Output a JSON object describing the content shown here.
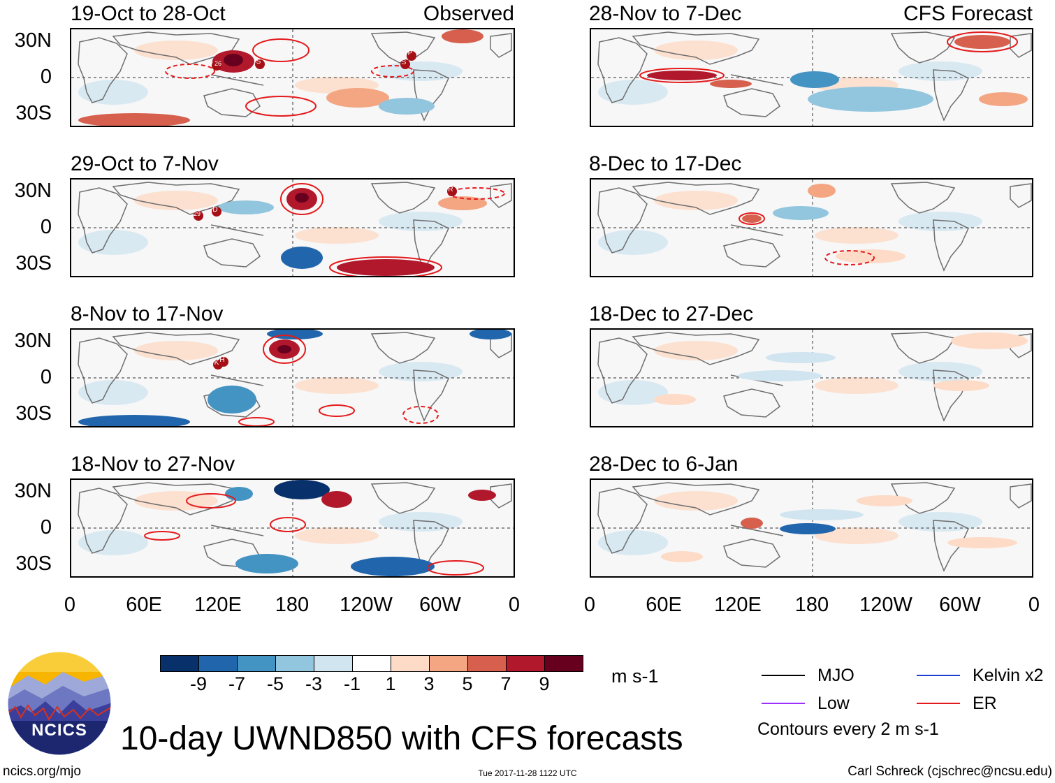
{
  "observed_label": "Observed",
  "forecast_label": "CFS Forecast",
  "observed_panels": [
    {
      "title": "19-Oct to 28-Oct",
      "storms": [
        "26",
        "S",
        "P",
        "S"
      ]
    },
    {
      "title": "29-Oct to 7-Nov",
      "storms": [
        "29",
        "D",
        "R"
      ]
    },
    {
      "title": "8-Nov to 17-Nov",
      "storms": [
        "K",
        "H"
      ]
    },
    {
      "title": "18-Nov to 27-Nov",
      "storms": []
    }
  ],
  "forecast_panels": [
    {
      "title": "28-Nov to 7-Dec"
    },
    {
      "title": "8-Dec to 17-Dec"
    },
    {
      "title": "18-Dec to 27-Dec"
    },
    {
      "title": "28-Dec to 6-Jan"
    }
  ],
  "lat_labels": [
    "30N",
    "0",
    "30S"
  ],
  "lon_labels": [
    "0",
    "60E",
    "120E",
    "180",
    "120W",
    "60W",
    "0"
  ],
  "colorbar": {
    "colors": [
      "#08306b",
      "#2166ac",
      "#4393c3",
      "#92c5de",
      "#d1e5f0",
      "#ffffff",
      "#fddbc7",
      "#f4a582",
      "#d6604d",
      "#b2182b",
      "#67001f"
    ],
    "labels": [
      "-9",
      "-7",
      "-5",
      "-3",
      "-1",
      "1",
      "3",
      "5",
      "7",
      "9"
    ],
    "unit": "m s-1"
  },
  "legend": {
    "items": [
      {
        "label": "MJO",
        "color": "#000000"
      },
      {
        "label": "Kelvin x2",
        "color": "#1f3fd6"
      },
      {
        "label": "Low",
        "color": "#9b30ff"
      },
      {
        "label": "ER",
        "color": "#e41a1c"
      }
    ],
    "contours_note": "Contours every 2 m s-1"
  },
  "logo_text": "NCICS",
  "main_title": "10-day UWND850 with CFS forecasts",
  "footer": {
    "url": "ncics.org/mjo",
    "timestamp": "Tue 2017-11-28 1122 UTC",
    "credit": "Carl Schreck (cjschrec@ncsu.edu)"
  }
}
